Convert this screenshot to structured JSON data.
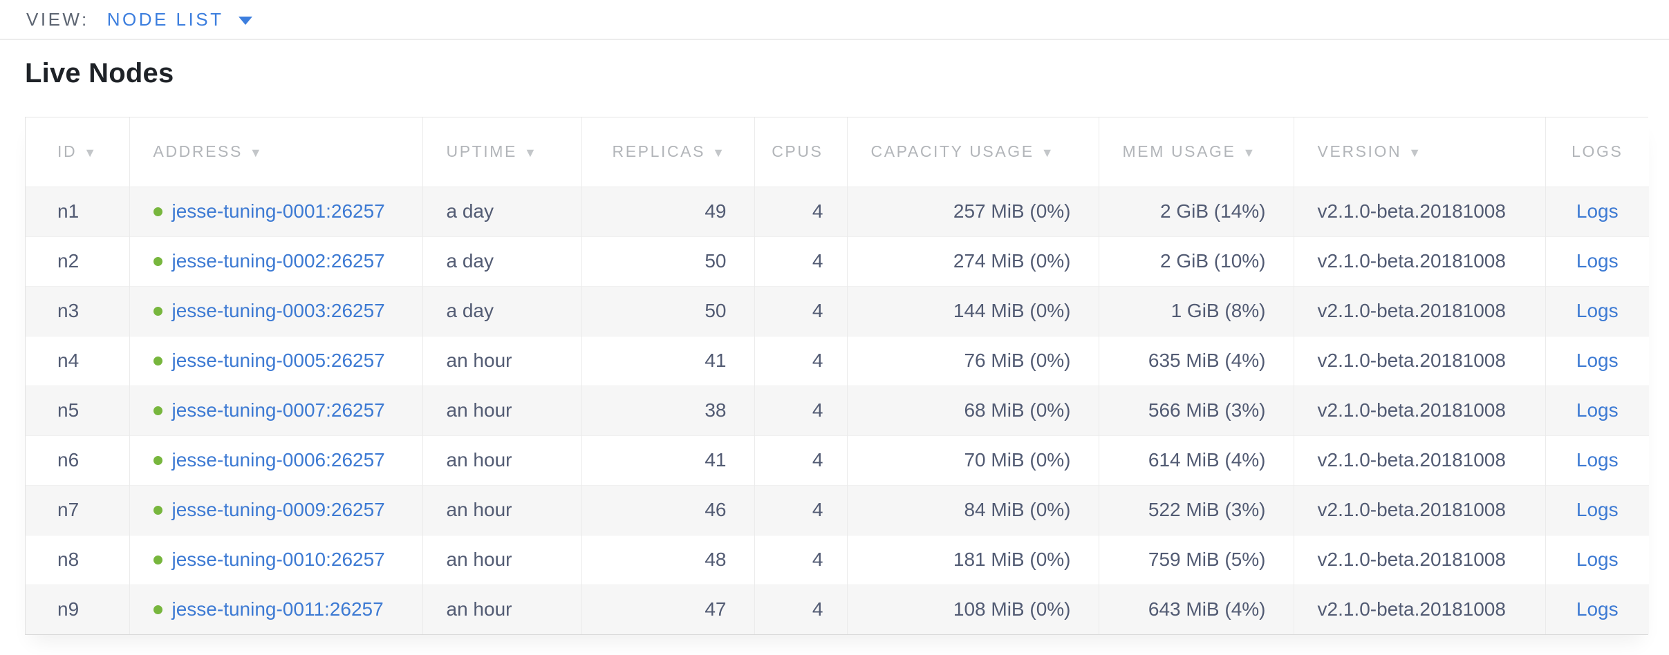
{
  "view_bar": {
    "label": "VIEW:",
    "selected": "NODE LIST"
  },
  "page": {
    "title": "Live Nodes"
  },
  "colors": {
    "accent_blue": "#3c7ede",
    "link_blue": "#3d7ad3",
    "live_node_green": "#77b63d",
    "header_gray": "#b2b5b9",
    "body_text": "#525b73",
    "alt_row_bg": "#f6f6f6"
  },
  "icons": {
    "sort_desc": "▼"
  },
  "table": {
    "columns": [
      {
        "key": "id",
        "label": "ID",
        "sortable": true
      },
      {
        "key": "address",
        "label": "ADDRESS",
        "sortable": true
      },
      {
        "key": "uptime",
        "label": "UPTIME",
        "sortable": true
      },
      {
        "key": "replicas",
        "label": "REPLICAS",
        "sortable": true
      },
      {
        "key": "cpus",
        "label": "CPUS",
        "sortable": false
      },
      {
        "key": "capacity",
        "label": "CAPACITY USAGE",
        "sortable": true
      },
      {
        "key": "mem",
        "label": "MEM USAGE",
        "sortable": true
      },
      {
        "key": "version",
        "label": "VERSION",
        "sortable": true
      },
      {
        "key": "logs",
        "label": "LOGS",
        "sortable": false
      }
    ],
    "rows": [
      {
        "id": "n1",
        "address": "jesse-tuning-0001:26257",
        "uptime": "a day",
        "replicas": "49",
        "cpus": "4",
        "capacity": "257 MiB (0%)",
        "mem": "2 GiB (14%)",
        "version": "v2.1.0-beta.20181008",
        "logs": "Logs"
      },
      {
        "id": "n2",
        "address": "jesse-tuning-0002:26257",
        "uptime": "a day",
        "replicas": "50",
        "cpus": "4",
        "capacity": "274 MiB (0%)",
        "mem": "2 GiB (10%)",
        "version": "v2.1.0-beta.20181008",
        "logs": "Logs"
      },
      {
        "id": "n3",
        "address": "jesse-tuning-0003:26257",
        "uptime": "a day",
        "replicas": "50",
        "cpus": "4",
        "capacity": "144 MiB (0%)",
        "mem": "1 GiB (8%)",
        "version": "v2.1.0-beta.20181008",
        "logs": "Logs"
      },
      {
        "id": "n4",
        "address": "jesse-tuning-0005:26257",
        "uptime": "an hour",
        "replicas": "41",
        "cpus": "4",
        "capacity": "76 MiB (0%)",
        "mem": "635 MiB (4%)",
        "version": "v2.1.0-beta.20181008",
        "logs": "Logs"
      },
      {
        "id": "n5",
        "address": "jesse-tuning-0007:26257",
        "uptime": "an hour",
        "replicas": "38",
        "cpus": "4",
        "capacity": "68 MiB (0%)",
        "mem": "566 MiB (3%)",
        "version": "v2.1.0-beta.20181008",
        "logs": "Logs"
      },
      {
        "id": "n6",
        "address": "jesse-tuning-0006:26257",
        "uptime": "an hour",
        "replicas": "41",
        "cpus": "4",
        "capacity": "70 MiB (0%)",
        "mem": "614 MiB (4%)",
        "version": "v2.1.0-beta.20181008",
        "logs": "Logs"
      },
      {
        "id": "n7",
        "address": "jesse-tuning-0009:26257",
        "uptime": "an hour",
        "replicas": "46",
        "cpus": "4",
        "capacity": "84 MiB (0%)",
        "mem": "522 MiB (3%)",
        "version": "v2.1.0-beta.20181008",
        "logs": "Logs"
      },
      {
        "id": "n8",
        "address": "jesse-tuning-0010:26257",
        "uptime": "an hour",
        "replicas": "48",
        "cpus": "4",
        "capacity": "181 MiB (0%)",
        "mem": "759 MiB (5%)",
        "version": "v2.1.0-beta.20181008",
        "logs": "Logs"
      },
      {
        "id": "n9",
        "address": "jesse-tuning-0011:26257",
        "uptime": "an hour",
        "replicas": "47",
        "cpus": "4",
        "capacity": "108 MiB (0%)",
        "mem": "643 MiB (4%)",
        "version": "v2.1.0-beta.20181008",
        "logs": "Logs"
      }
    ]
  }
}
